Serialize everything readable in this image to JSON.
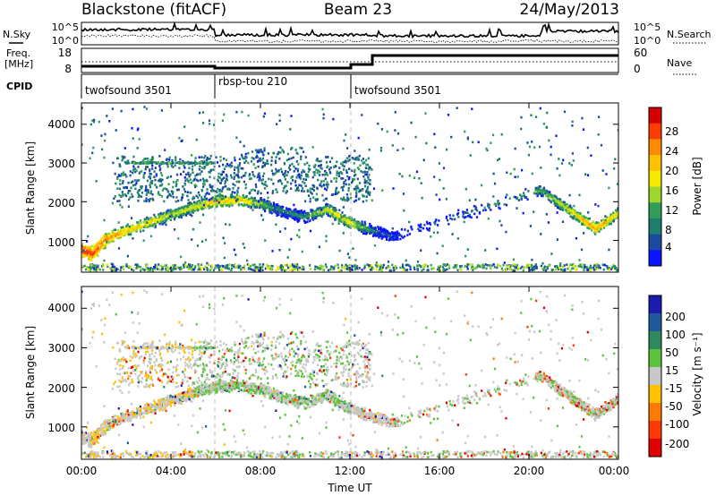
{
  "header": {
    "left_title": "Blackstone (fitACF)",
    "center_title": "Beam 23",
    "right_title": "24/May/2013"
  },
  "noise_panel": {
    "left_label": "N.Sky",
    "right_label": "N.Search",
    "tick_top": "10^5",
    "tick_bottom": "10^0"
  },
  "freq_panel": {
    "left_label_line1": "Freq.",
    "left_label_line2": "[MHz]",
    "left_tick_top": "18",
    "left_tick_bottom": "8",
    "right_label": "Nave",
    "right_tick_top": "60",
    "right_tick_bottom": "0"
  },
  "cpid": {
    "label": "CPID",
    "segments": [
      {
        "name": "twofsound 3501",
        "start_hour": 0
      },
      {
        "name": "rbsp-tou 210",
        "start_hour": 6
      },
      {
        "name": "twofsound 3501",
        "start_hour": 12
      }
    ]
  },
  "power_panel": {
    "ylabel": "Slant Range [km]",
    "yticks": [
      "1000",
      "2000",
      "3000",
      "4000"
    ],
    "colorbar_title": "Power [dB]",
    "colorbar_ticks": [
      "28",
      "24",
      "20",
      "16",
      "12",
      "8",
      "4"
    ],
    "colorbar_colors": [
      "#d40000",
      "#ff3c00",
      "#ff8c00",
      "#ffc000",
      "#f5e900",
      "#9ed62e",
      "#2f9e58",
      "#1f7f6f",
      "#1b4aa0",
      "#0a14ff"
    ]
  },
  "velocity_panel": {
    "ylabel": "Slant Range [km]",
    "yticks": [
      "1000",
      "2000",
      "3000",
      "4000"
    ],
    "colorbar_title": "Velocity [m s⁻¹]",
    "colorbar_ticks": [
      "200",
      "100",
      "50",
      "15",
      "-15",
      "-50",
      "-100",
      "-200"
    ],
    "colorbar_colors": [
      "#1b1bb0",
      "#1e5a9c",
      "#2e8a5c",
      "#5cc43a",
      "#c8c8c8",
      "#ffc000",
      "#ff7a00",
      "#ff3a00",
      "#e00000"
    ]
  },
  "x_axis": {
    "ticks": [
      "00:00",
      "04:00",
      "08:00",
      "12:00",
      "16:00",
      "20:00",
      "00:00"
    ],
    "label": "Time UT"
  },
  "chart_data": {
    "type": "heatmap",
    "xlim_hours": [
      0,
      24
    ],
    "ylim_km": [
      180,
      4550
    ],
    "power_trace": [
      {
        "h": 0.0,
        "km": 750,
        "db": 30
      },
      {
        "h": 0.5,
        "km": 650,
        "db": 28
      },
      {
        "h": 1.0,
        "km": 1000,
        "db": 26
      },
      {
        "h": 2.0,
        "km": 1250,
        "db": 22
      },
      {
        "h": 3.0,
        "km": 1450,
        "db": 20
      },
      {
        "h": 4.0,
        "km": 1650,
        "db": 18
      },
      {
        "h": 5.0,
        "km": 1850,
        "db": 18
      },
      {
        "h": 6.0,
        "km": 2000,
        "db": 22
      },
      {
        "h": 7.0,
        "km": 2050,
        "db": 22
      },
      {
        "h": 8.0,
        "km": 1950,
        "db": 16
      },
      {
        "h": 9.0,
        "km": 1750,
        "db": 10
      },
      {
        "h": 10.0,
        "km": 1600,
        "db": 12
      },
      {
        "h": 11.0,
        "km": 1800,
        "db": 18
      },
      {
        "h": 12.0,
        "km": 1450,
        "db": 20
      },
      {
        "h": 13.0,
        "km": 1250,
        "db": 10
      },
      {
        "h": 14.0,
        "km": 1100,
        "db": 6
      },
      {
        "h": 20.5,
        "km": 2300,
        "db": 14
      },
      {
        "h": 21.5,
        "km": 1900,
        "db": 18
      },
      {
        "h": 22.5,
        "km": 1500,
        "db": 22
      },
      {
        "h": 23.0,
        "km": 1300,
        "db": 24
      },
      {
        "h": 24.0,
        "km": 1700,
        "db": 20
      }
    ]
  }
}
